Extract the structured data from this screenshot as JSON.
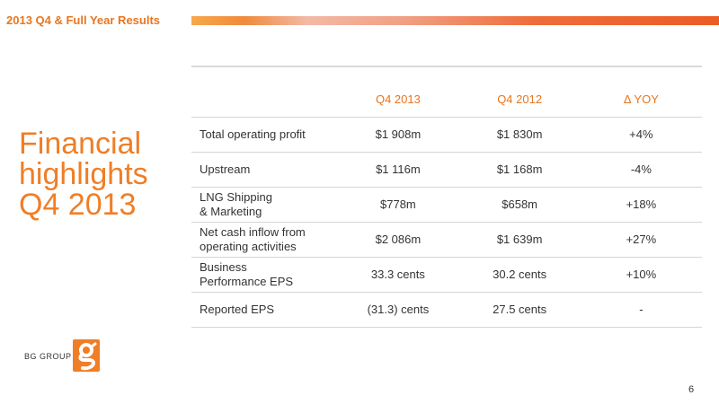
{
  "header": {
    "title": "2013 Q4 & Full Year Results"
  },
  "slide": {
    "heading_lines": [
      "Financial",
      "highlights",
      "Q4 2013"
    ]
  },
  "table": {
    "columns": [
      "",
      "Q4 2013",
      "Q4 2012",
      "Δ YOY"
    ],
    "rows": [
      {
        "label": [
          "Total operating profit"
        ],
        "q4_2013": "$1 908m",
        "q4_2012": "$1 830m",
        "yoy": "+4%"
      },
      {
        "label": [
          "Upstream"
        ],
        "q4_2013": "$1 116m",
        "q4_2012": "$1 168m",
        "yoy": "-4%"
      },
      {
        "label": [
          "LNG Shipping",
          "& Marketing"
        ],
        "q4_2013": "$778m",
        "q4_2012": "$658m",
        "yoy": "+18%"
      },
      {
        "label": [
          "Net cash inflow from",
          "operating activities"
        ],
        "q4_2013": "$2 086m",
        "q4_2012": "$1 639m",
        "yoy": "+27%"
      },
      {
        "label": [
          "Business",
          "Performance EPS"
        ],
        "q4_2013": "33.3 cents",
        "q4_2012": "30.2 cents",
        "yoy": "+10%"
      },
      {
        "label": [
          "Reported EPS"
        ],
        "q4_2013": "(31.3) cents",
        "q4_2012": "27.5 cents",
        "yoy": "-"
      }
    ]
  },
  "footer": {
    "logo_text": "BG GROUP",
    "page_number": "6"
  },
  "colors": {
    "accent": "#e8761e",
    "heading": "#f07e26",
    "rule": "#d5d5d5"
  }
}
